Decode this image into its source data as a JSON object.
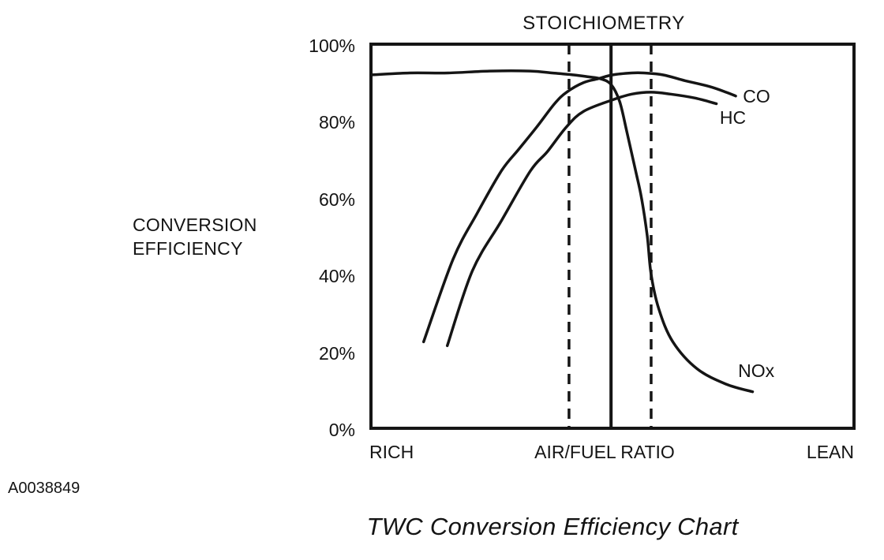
{
  "page": {
    "figure_code": "A0038849",
    "caption": "TWC Conversion Efficiency Chart"
  },
  "chart_data": {
    "type": "line",
    "title": "STOICHIOMETRY",
    "ylabel": "CONVERSION EFFICIENCY",
    "xlabel": "AIR/FUEL RATIO",
    "x_left_label": "RICH",
    "x_right_label": "LEAN",
    "grid": false,
    "legend_position": "inline-labels",
    "x_range": [
      0,
      100
    ],
    "y_range": [
      0,
      100
    ],
    "x_axis_note": "relative air/fuel ratio position, rich to lean (no numeric scale shown)",
    "y_ticks": [
      {
        "label": "100%",
        "value": 100
      },
      {
        "label": "80%",
        "value": 80
      },
      {
        "label": "60%",
        "value": 60
      },
      {
        "label": "40%",
        "value": 40
      },
      {
        "label": "20%",
        "value": 20
      },
      {
        "label": "0%",
        "value": 0
      }
    ],
    "stoichiometry_line": {
      "x": 49.7,
      "style": "solid"
    },
    "window_lines": [
      {
        "x": 41.0,
        "style": "dashed"
      },
      {
        "x": 58.0,
        "style": "dashed"
      }
    ],
    "series": [
      {
        "name": "CO",
        "label_pos": [
          77,
          86.5
        ],
        "points": [
          [
            10.9,
            22.5
          ],
          [
            17,
            44
          ],
          [
            22,
            56
          ],
          [
            27,
            67
          ],
          [
            30.5,
            72.5
          ],
          [
            34.3,
            78.4
          ],
          [
            38,
            84.5
          ],
          [
            40.5,
            87.5
          ],
          [
            44,
            90
          ],
          [
            47,
            91
          ],
          [
            50,
            92
          ],
          [
            54,
            92.5
          ],
          [
            56.5,
            92.5
          ],
          [
            60.5,
            92
          ],
          [
            65,
            90.5
          ],
          [
            70,
            89
          ],
          [
            73.5,
            87.5
          ],
          [
            75.5,
            86.5
          ]
        ]
      },
      {
        "name": "HC",
        "label_pos": [
          72.2,
          81
        ],
        "points": [
          [
            15.8,
            21.5
          ],
          [
            21,
            41
          ],
          [
            27,
            54
          ],
          [
            33,
            67
          ],
          [
            36.5,
            72
          ],
          [
            40.5,
            78.5
          ],
          [
            44,
            82.5
          ],
          [
            50,
            85.5
          ],
          [
            54,
            87
          ],
          [
            58,
            87.5
          ],
          [
            62,
            87
          ],
          [
            67,
            86
          ],
          [
            71.5,
            84.5
          ]
        ]
      },
      {
        "name": "NOx",
        "label_pos": [
          76,
          15
        ],
        "points": [
          [
            0,
            92
          ],
          [
            8,
            92.5
          ],
          [
            16,
            92.5
          ],
          [
            24.5,
            93
          ],
          [
            33,
            93
          ],
          [
            37.5,
            92.5
          ],
          [
            42,
            92
          ],
          [
            45,
            91.5
          ],
          [
            47.5,
            91
          ],
          [
            49.7,
            89.5
          ],
          [
            51.5,
            85
          ],
          [
            53,
            77
          ],
          [
            54.7,
            67.5
          ],
          [
            56,
            60
          ],
          [
            57.2,
            50
          ],
          [
            58,
            40
          ],
          [
            59.6,
            31
          ],
          [
            62.5,
            22.5
          ],
          [
            67.5,
            15.5
          ],
          [
            73.5,
            11.5
          ],
          [
            79,
            9.5
          ]
        ]
      }
    ],
    "line_color": "#151515"
  }
}
